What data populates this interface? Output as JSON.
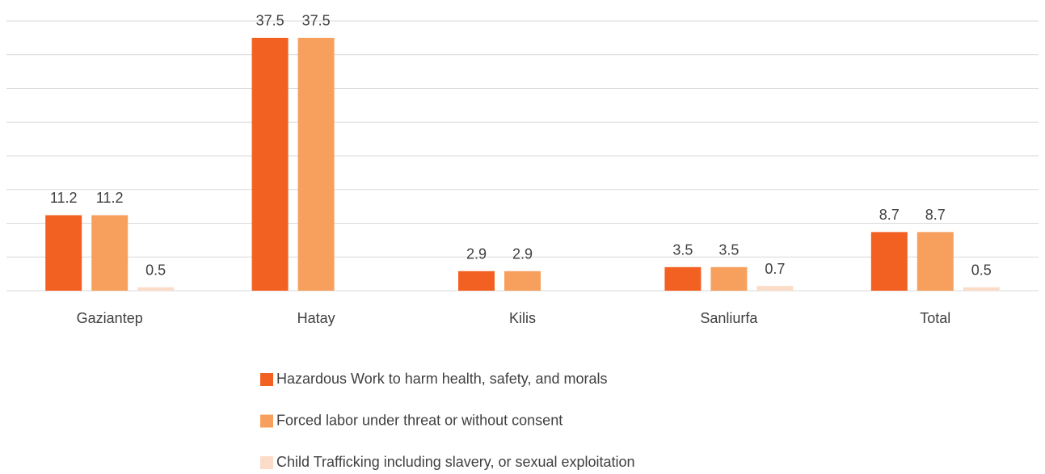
{
  "chart_data": {
    "type": "bar",
    "categories": [
      "Gaziantep",
      "Hatay",
      "Kilis",
      "Sanliurfa",
      "Total"
    ],
    "series": [
      {
        "name": "Hazardous Work to harm health, safety, and morals",
        "color": "#f26122",
        "values": [
          11.2,
          37.5,
          2.9,
          3.5,
          8.7
        ]
      },
      {
        "name": "Forced labor under threat or without consent",
        "color": "#f7a05e",
        "values": [
          11.2,
          37.5,
          2.9,
          3.5,
          8.7
        ]
      },
      {
        "name": "Child Trafficking including slavery, or sexual exploitation",
        "color": "#fbdcc9",
        "values": [
          0.5,
          null,
          null,
          0.7,
          0.5
        ]
      }
    ],
    "ylim": [
      0,
      40
    ],
    "yticks": [
      0,
      5,
      10,
      15,
      20,
      25,
      30,
      35,
      40
    ],
    "grid": true
  }
}
